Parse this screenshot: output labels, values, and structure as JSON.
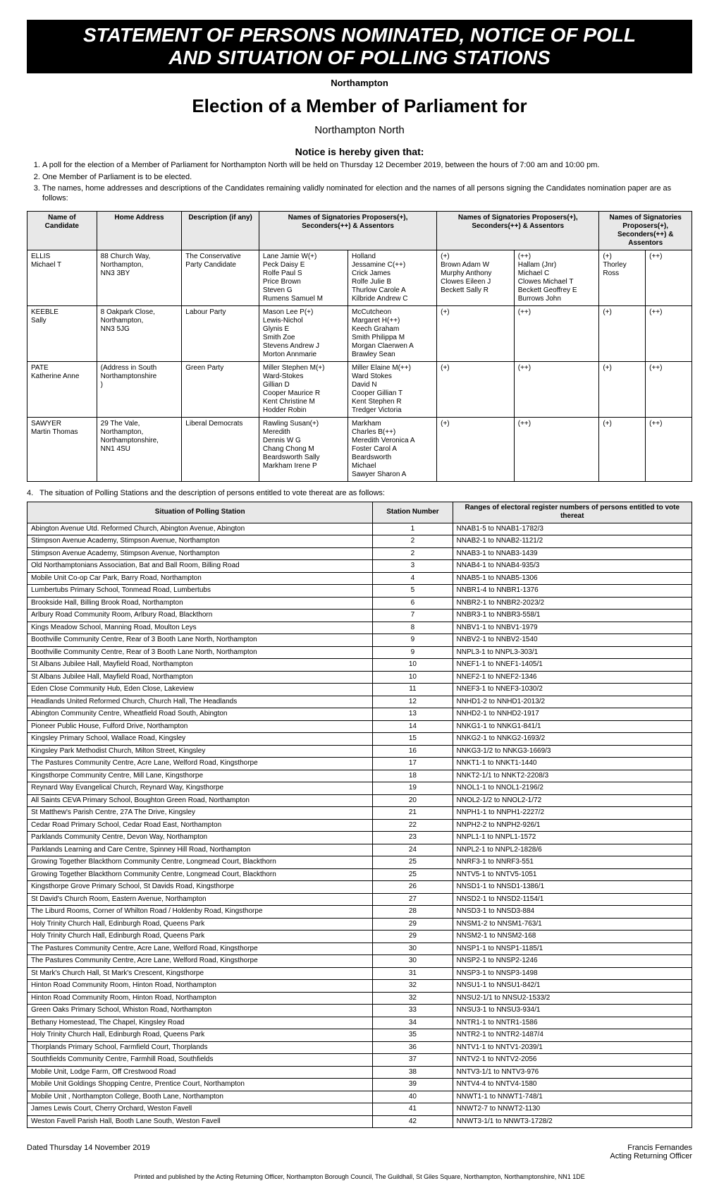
{
  "banner": {
    "line1": "STATEMENT OF PERSONS NOMINATED, NOTICE OF POLL",
    "line2": "AND SITUATION OF POLLING STATIONS"
  },
  "area": "Northampton",
  "election_title": "Election of a Member of Parliament for",
  "constituency": "Northampton North",
  "notice_heading": "Notice is hereby given that:",
  "notice_items": [
    "A poll for the election of a Member of Parliament for Northampton North will be held on Thursday 12 December 2019, between the hours of 7:00 am and 10:00 pm.",
    "One Member of Parliament is to be elected.",
    "The names, home addresses and descriptions of the Candidates remaining validly nominated for election and the names of all persons signing the Candidates nomination paper are as follows:"
  ],
  "cand_table": {
    "headers": {
      "name": "Name of Candidate",
      "addr": "Home Address",
      "desc": "Description (if any)",
      "sigs": "Names of Signatories\nProposers(+), Seconders(++) & Assentors"
    },
    "col_widths": [
      "90px",
      "110px",
      "100px",
      "115px",
      "115px",
      "100px",
      "110px",
      "60px",
      "60px"
    ]
  },
  "candidates": [
    {
      "name": "ELLIS\nMichael T",
      "addr": "88 Church Way,\nNorthampton,\nNN3 3BY",
      "desc": "The Conservative Party Candidate",
      "sig_cols": [
        "Lane Jamie W(+)\nPeck Daisy E\nRolfe Paul S\nPrice Brown\nSteven G\nRumens Samuel M",
        "Holland\nJessamine C(++)\nCrick James\nRolfe Julie B\nThurlow Carole A\nKilbride Andrew C",
        "(+)\nBrown Adam W\nMurphy Anthony\nClowes Eileen J\nBeckett Sally R",
        "(++)\nHallam (Jnr)\nMichael C\nClowes Michael T\nBeckett Geoffrey E\nBurrows John",
        "(+)\nThorley Ross",
        "(++)"
      ]
    },
    {
      "name": "KEEBLE\nSally",
      "addr": "8 Oakpark Close,\nNorthampton,\nNN3 5JG",
      "desc": "Labour Party",
      "sig_cols": [
        "Mason Lee P(+)\nLewis-Nichol\nGlynis E\nSmith Zoe\nStevens Andrew J\nMorton Annmarie",
        "McCutcheon\nMargaret H(++)\nKeech Graham\nSmith Philippa M\nMorgan Claerwen A\nBrawley Sean",
        "(+)",
        "(++)",
        "(+)",
        "(++)"
      ]
    },
    {
      "name": "PATE\nKatherine Anne",
      "addr": "(Address in South\nNorthamptonshire\n)",
      "desc": "Green Party",
      "sig_cols": [
        "Miller Stephen M(+)\nWard-Stokes\nGillian D\nCooper Maurice R\nKent Christine M\nHodder Robin",
        "Miller Elaine M(++)\nWard Stokes\nDavid N\nCooper Gillian T\nKent Stephen R\nTredger Victoria",
        "(+)",
        "(++)",
        "(+)",
        "(++)"
      ]
    },
    {
      "name": "SAWYER\nMartin Thomas",
      "addr": "29 The Vale,\nNorthampton,\nNorthamptonshire,\nNN1 4SU",
      "desc": "Liberal Democrats",
      "sig_cols": [
        "Rawling Susan(+)\nMeredith\nDennis W G\nChang Chong M\nBeardsworth Sally\nMarkham Irene P",
        "Markham\nCharles B(++)\nMeredith Veronica A\nFoster Carol A\nBeardsworth\nMichael\nSawyer Sharon A",
        "(+)",
        "(++)",
        "(+)",
        "(++)"
      ]
    }
  ],
  "stations_intro_num": "4.",
  "stations_intro": "The situation of Polling Stations and the description of persons entitled to vote thereat are as follows:",
  "stations_headers": {
    "situation": "Situation of Polling Station",
    "number": "Station Number",
    "ranges": "Ranges of electoral register numbers of persons entitled to vote thereat"
  },
  "stations": [
    [
      "Abington Avenue Utd. Reformed Church, Abington Avenue, Abington",
      "1",
      "NNAB1-5 to NNAB1-1782/3"
    ],
    [
      "Stimpson Avenue Academy, Stimpson Avenue, Northampton",
      "2",
      "NNAB2-1 to NNAB2-1121/2"
    ],
    [
      "Stimpson Avenue Academy, Stimpson Avenue, Northampton",
      "2",
      "NNAB3-1 to NNAB3-1439"
    ],
    [
      "Old Northamptonians Association, Bat and Ball Room, Billing Road",
      "3",
      "NNAB4-1 to NNAB4-935/3"
    ],
    [
      "Mobile Unit Co-op Car Park, Barry Road, Northampton",
      "4",
      "NNAB5-1 to NNAB5-1306"
    ],
    [
      "Lumbertubs Primary School, Tonmead Road, Lumbertubs",
      "5",
      "NNBR1-4 to NNBR1-1376"
    ],
    [
      "Brookside Hall, Billing Brook Road, Northampton",
      "6",
      "NNBR2-1 to NNBR2-2023/2"
    ],
    [
      "Arlbury Road Community Room, Arlbury Road, Blackthorn",
      "7",
      "NNBR3-1 to NNBR3-558/1"
    ],
    [
      "Kings Meadow School, Manning Road, Moulton Leys",
      "8",
      "NNBV1-1 to NNBV1-1979"
    ],
    [
      "Boothville Community Centre, Rear of 3 Booth Lane North, Northampton",
      "9",
      "NNBV2-1 to NNBV2-1540"
    ],
    [
      "Boothville Community Centre, Rear of 3 Booth Lane North, Northampton",
      "9",
      "NNPL3-1 to NNPL3-303/1"
    ],
    [
      "St Albans Jubilee Hall, Mayfield Road, Northampton",
      "10",
      "NNEF1-1 to NNEF1-1405/1"
    ],
    [
      "St Albans Jubilee Hall, Mayfield Road, Northampton",
      "10",
      "NNEF2-1 to NNEF2-1346"
    ],
    [
      "Eden Close Community Hub, Eden Close, Lakeview",
      "11",
      "NNEF3-1 to NNEF3-1030/2"
    ],
    [
      "Headlands United Reformed Church, Church Hall, The Headlands",
      "12",
      "NNHD1-2 to NNHD1-2013/2"
    ],
    [
      "Abington Community Centre, Wheatfield Road South, Abington",
      "13",
      "NNHD2-1 to NNHD2-1917"
    ],
    [
      "Pioneer Public House, Fulford Drive, Northampton",
      "14",
      "NNKG1-1 to NNKG1-841/1"
    ],
    [
      "Kingsley Primary School, Wallace Road, Kingsley",
      "15",
      "NNKG2-1 to NNKG2-1693/2"
    ],
    [
      "Kingsley Park Methodist Church, Milton Street, Kingsley",
      "16",
      "NNKG3-1/2 to NNKG3-1669/3"
    ],
    [
      "The Pastures Community Centre, Acre Lane, Welford Road, Kingsthorpe",
      "17",
      "NNKT1-1 to NNKT1-1440"
    ],
    [
      "Kingsthorpe Community Centre, Mill Lane, Kingsthorpe",
      "18",
      "NNKT2-1/1 to NNKT2-2208/3"
    ],
    [
      "Reynard Way Evangelical Church, Reynard Way, Kingsthorpe",
      "19",
      "NNOL1-1 to NNOL1-2196/2"
    ],
    [
      "All Saints CEVA Primary School, Boughton Green Road, Northampton",
      "20",
      "NNOL2-1/2 to NNOL2-1/72"
    ],
    [
      "St Matthew's Parish Centre, 27A The Drive, Kingsley",
      "21",
      "NNPH1-1 to NNPH1-2227/2"
    ],
    [
      "Cedar Road Primary School, Cedar Road East, Northampton",
      "22",
      "NNPH2-2 to NNPH2-926/1"
    ],
    [
      "Parklands Community Centre, Devon Way, Northampton",
      "23",
      "NNPL1-1 to NNPL1-1572"
    ],
    [
      "Parklands Learning and Care Centre, Spinney Hill Road, Northampton",
      "24",
      "NNPL2-1 to NNPL2-1828/6"
    ],
    [
      "Growing Together Blackthorn Community Centre, Longmead Court, Blackthorn",
      "25",
      "NNRF3-1 to NNRF3-551"
    ],
    [
      "Growing Together Blackthorn Community Centre, Longmead Court, Blackthorn",
      "25",
      "NNTV5-1 to NNTV5-1051"
    ],
    [
      "Kingsthorpe Grove Primary School, St Davids Road, Kingsthorpe",
      "26",
      "NNSD1-1 to NNSD1-1386/1"
    ],
    [
      "St David's Church Room, Eastern Avenue, Northampton",
      "27",
      "NNSD2-1 to NNSD2-1154/1"
    ],
    [
      "The Liburd Rooms, Corner of Whilton Road / Holdenby Road, Kingsthorpe",
      "28",
      "NNSD3-1 to NNSD3-884"
    ],
    [
      "Holy Trinity Church Hall, Edinburgh Road, Queens Park",
      "29",
      "NNSM1-2 to NNSM1-763/1"
    ],
    [
      "Holy Trinity Church Hall, Edinburgh Road, Queens Park",
      "29",
      "NNSM2-1 to NNSM2-168"
    ],
    [
      "The Pastures Community Centre, Acre Lane, Welford Road, Kingsthorpe",
      "30",
      "NNSP1-1 to NNSP1-1185/1"
    ],
    [
      "The Pastures Community Centre, Acre Lane, Welford Road, Kingsthorpe",
      "30",
      "NNSP2-1 to NNSP2-1246"
    ],
    [
      "St Mark's Church Hall, St Mark's Crescent, Kingsthorpe",
      "31",
      "NNSP3-1 to NNSP3-1498"
    ],
    [
      "Hinton Road Community Room, Hinton Road, Northampton",
      "32",
      "NNSU1-1 to NNSU1-842/1"
    ],
    [
      "Hinton Road Community Room, Hinton Road, Northampton",
      "32",
      "NNSU2-1/1 to NNSU2-1533/2"
    ],
    [
      "Green Oaks Primary School, Whiston Road, Northampton",
      "33",
      "NNSU3-1 to NNSU3-934/1"
    ],
    [
      "Bethany Homestead, The Chapel, Kingsley Road",
      "34",
      "NNTR1-1 to NNTR1-1586"
    ],
    [
      "Holy Trinity Church Hall, Edinburgh Road, Queens Park",
      "35",
      "NNTR2-1 to NNTR2-1487/4"
    ],
    [
      "Thorplands Primary School, Farmfield Court, Thorplands",
      "36",
      "NNTV1-1 to NNTV1-2039/1"
    ],
    [
      "Southfields Community Centre, Farmhill Road, Southfields",
      "37",
      "NNTV2-1 to NNTV2-2056"
    ],
    [
      "Mobile Unit, Lodge Farm, Off Crestwood Road",
      "38",
      "NNTV3-1/1 to NNTV3-976"
    ],
    [
      "Mobile Unit Goldings Shopping Centre, Prentice Court, Northampton",
      "39",
      "NNTV4-4 to NNTV4-1580"
    ],
    [
      "Mobile Unit , Northampton College, Booth Lane, Northampton",
      "40",
      "NNWT1-1 to NNWT1-748/1"
    ],
    [
      "James Lewis Court, Cherry Orchard, Weston Favell",
      "41",
      "NNWT2-7 to NNWT2-1130"
    ],
    [
      "Weston Favell Parish Hall, Booth Lane South, Weston Favell",
      "42",
      "NNWT3-1/1 to NNWT3-1728/2"
    ]
  ],
  "footer": {
    "dated": "Dated Thursday 14 November 2019",
    "officer_name": "Francis Fernandes",
    "officer_title": "Acting Returning Officer"
  },
  "imprint": "Printed and published by the Acting Returning Officer, Northampton Borough Council, The Guildhall, St Giles Square, Northampton, Northamptonshire, NN1 1DE"
}
